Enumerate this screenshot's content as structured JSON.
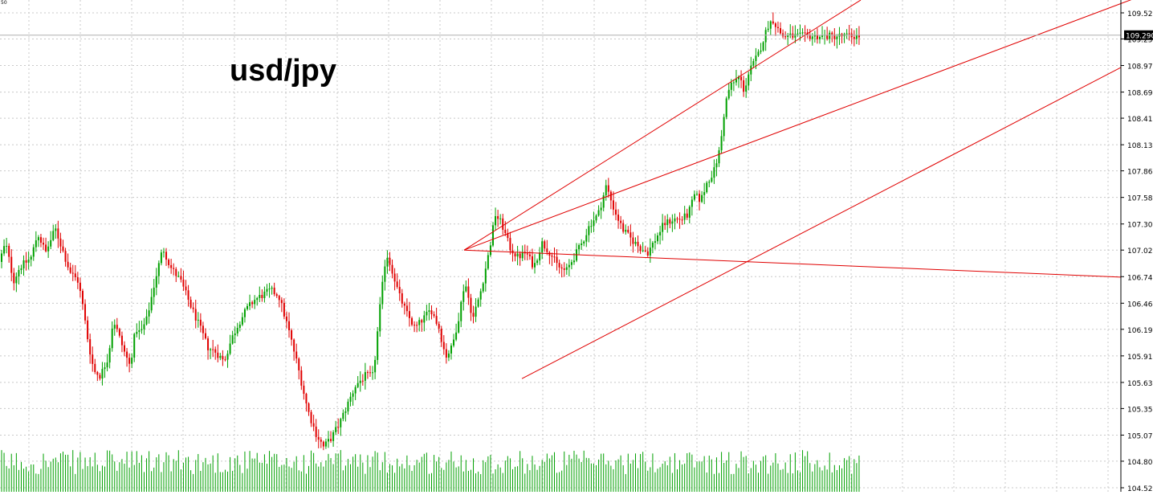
{
  "chart_data": {
    "type": "candlestick",
    "title": "usd/jpy",
    "top_left_label": "50",
    "y_axis": {
      "ticks": [
        "109.525",
        "109.250",
        "108.970",
        "108.690",
        "108.415",
        "108.135",
        "107.860",
        "107.580",
        "107.300",
        "107.025",
        "106.745",
        "106.465",
        "106.190",
        "105.910",
        "105.630",
        "105.355",
        "105.075",
        "104.800",
        "104.520"
      ],
      "ylim": [
        104.52,
        109.66
      ]
    },
    "current_price": {
      "value": 109.29,
      "label": "109.290"
    },
    "grid": true,
    "n_bars": 350,
    "colors": {
      "up": "#00a000",
      "down": "#e00000",
      "trendline": "#e00000",
      "volume": "#00a000",
      "grid": "#c8c8c8",
      "axis_text": "#000000",
      "price_line": "#b0b0b0"
    },
    "anchors": [
      [
        0,
        106.85
      ],
      [
        10,
        107.1
      ],
      [
        20,
        106.7
      ],
      [
        28,
        106.85
      ],
      [
        36,
        106.9
      ],
      [
        42,
        106.95
      ],
      [
        50,
        107.2
      ],
      [
        60,
        107.0
      ],
      [
        72,
        107.25
      ],
      [
        80,
        107.05
      ],
      [
        90,
        106.8
      ],
      [
        100,
        106.7
      ],
      [
        105,
        106.5
      ],
      [
        113,
        106.05
      ],
      [
        120,
        105.75
      ],
      [
        128,
        105.7
      ],
      [
        138,
        105.9
      ],
      [
        144,
        106.3
      ],
      [
        150,
        106.15
      ],
      [
        158,
        105.95
      ],
      [
        165,
        105.8
      ],
      [
        172,
        106.2
      ],
      [
        178,
        106.15
      ],
      [
        186,
        106.3
      ],
      [
        196,
        106.7
      ],
      [
        206,
        107.05
      ],
      [
        215,
        106.85
      ],
      [
        228,
        106.7
      ],
      [
        240,
        106.45
      ],
      [
        250,
        106.25
      ],
      [
        262,
        106.0
      ],
      [
        272,
        105.95
      ],
      [
        282,
        105.85
      ],
      [
        292,
        106.1
      ],
      [
        300,
        106.25
      ],
      [
        310,
        106.4
      ],
      [
        320,
        106.5
      ],
      [
        330,
        106.55
      ],
      [
        340,
        106.6
      ],
      [
        350,
        106.55
      ],
      [
        362,
        106.2
      ],
      [
        374,
        105.8
      ],
      [
        386,
        105.35
      ],
      [
        396,
        105.1
      ],
      [
        406,
        104.95
      ],
      [
        416,
        105.05
      ],
      [
        426,
        105.2
      ],
      [
        436,
        105.4
      ],
      [
        446,
        105.6
      ],
      [
        458,
        105.7
      ],
      [
        468,
        105.7
      ],
      [
        476,
        106.4
      ],
      [
        484,
        107.0
      ],
      [
        492,
        106.8
      ],
      [
        500,
        106.55
      ],
      [
        510,
        106.35
      ],
      [
        520,
        106.2
      ],
      [
        530,
        106.3
      ],
      [
        540,
        106.4
      ],
      [
        550,
        106.2
      ],
      [
        558,
        105.9
      ],
      [
        566,
        106.0
      ],
      [
        574,
        106.3
      ],
      [
        582,
        106.7
      ],
      [
        592,
        106.3
      ],
      [
        602,
        106.6
      ],
      [
        612,
        107.0
      ],
      [
        620,
        107.4
      ],
      [
        628,
        107.3
      ],
      [
        638,
        107.05
      ],
      [
        648,
        106.95
      ],
      [
        658,
        107.0
      ],
      [
        668,
        106.85
      ],
      [
        678,
        107.1
      ],
      [
        688,
        107.0
      ],
      [
        698,
        106.85
      ],
      [
        708,
        106.8
      ],
      [
        718,
        106.95
      ],
      [
        728,
        107.1
      ],
      [
        738,
        107.3
      ],
      [
        748,
        107.4
      ],
      [
        758,
        107.7
      ],
      [
        768,
        107.45
      ],
      [
        778,
        107.25
      ],
      [
        788,
        107.15
      ],
      [
        800,
        107.05
      ],
      [
        810,
        107.0
      ],
      [
        820,
        107.15
      ],
      [
        830,
        107.3
      ],
      [
        842,
        107.35
      ],
      [
        852,
        107.35
      ],
      [
        860,
        107.4
      ],
      [
        868,
        107.6
      ],
      [
        876,
        107.55
      ],
      [
        884,
        107.75
      ],
      [
        892,
        107.85
      ],
      [
        900,
        108.1
      ],
      [
        906,
        108.55
      ],
      [
        912,
        108.75
      ],
      [
        918,
        108.8
      ],
      [
        924,
        108.85
      ],
      [
        930,
        108.7
      ],
      [
        936,
        108.9
      ],
      [
        942,
        109.0
      ],
      [
        948,
        109.1
      ],
      [
        954,
        109.25
      ],
      [
        960,
        109.4
      ],
      [
        966,
        109.45
      ],
      [
        972,
        109.35
      ],
      [
        978,
        109.28
      ],
      [
        1000,
        109.28
      ]
    ],
    "trendlines": [
      {
        "from": [
          578,
          107.025
        ],
        "to": [
          1072,
          109.66
        ]
      },
      {
        "from": [
          578,
          107.025
        ],
        "to": [
          1436,
          109.75
        ]
      },
      {
        "from": [
          578,
          107.025
        ],
        "to": [
          1396,
          106.74
        ]
      },
      {
        "from": [
          650,
          105.67
        ],
        "to": [
          1396,
          108.95
        ]
      }
    ]
  }
}
